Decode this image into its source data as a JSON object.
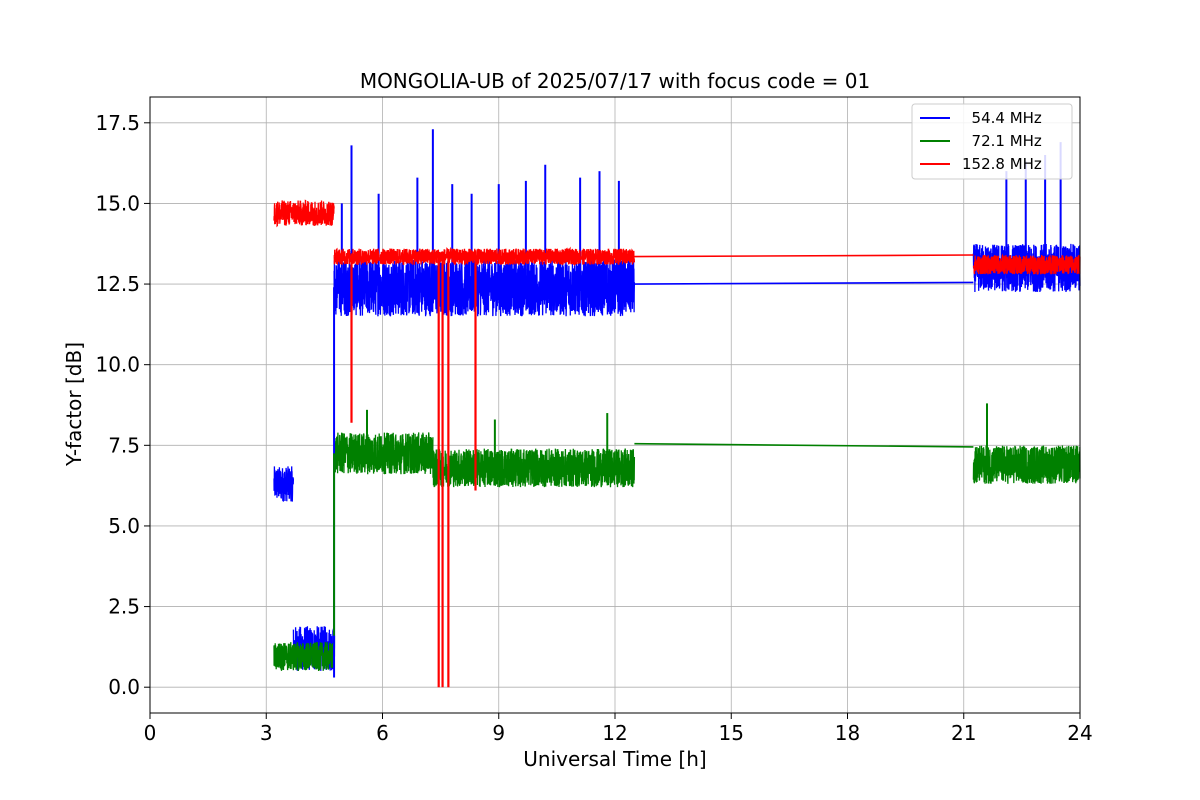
{
  "chart_data": {
    "type": "line",
    "title": "MONGOLIA-UB of 2025/07/17 with focus code = 01",
    "xlabel": "Universal Time [h]",
    "ylabel": "Y-factor [dB]",
    "xlim": [
      0,
      24
    ],
    "ylim": [
      -0.8,
      18.3
    ],
    "xticks": [
      0,
      3,
      6,
      9,
      12,
      15,
      18,
      21,
      24
    ],
    "xtick_labels": [
      "0",
      "3",
      "6",
      "9",
      "12",
      "15",
      "18",
      "21",
      "24"
    ],
    "yticks": [
      0.0,
      2.5,
      5.0,
      7.5,
      10.0,
      12.5,
      15.0,
      17.5
    ],
    "ytick_labels": [
      "0.0",
      "2.5",
      "5.0",
      "7.5",
      "10.0",
      "12.5",
      "15.0",
      "17.5"
    ],
    "grid": true,
    "legend_position": "top-right",
    "series": [
      {
        "name": "  54.4 MHz",
        "color": "#0000ff",
        "segments": [
          {
            "x_start": 3.2,
            "x_end": 3.7,
            "center": 6.3,
            "spread": 0.55
          },
          {
            "x_start": 3.7,
            "x_end": 4.75,
            "center": 1.2,
            "spread": 0.7
          },
          {
            "x_start": 4.75,
            "x_end": 12.5,
            "center": 12.4,
            "spread": 0.9
          },
          {
            "x_start": 21.25,
            "x_end": 24.0,
            "center": 13.0,
            "spread": 0.75
          }
        ],
        "gap_bridge": [
          [
            12.5,
            12.5
          ],
          [
            21.25,
            12.55
          ]
        ],
        "spikes": [
          [
            4.95,
            15.0
          ],
          [
            5.2,
            16.8
          ],
          [
            5.9,
            15.3
          ],
          [
            6.9,
            15.8
          ],
          [
            7.3,
            17.3
          ],
          [
            7.8,
            15.6
          ],
          [
            8.3,
            15.3
          ],
          [
            9.0,
            15.6
          ],
          [
            9.7,
            15.7
          ],
          [
            10.2,
            16.2
          ],
          [
            11.1,
            15.8
          ],
          [
            11.6,
            16.0
          ],
          [
            12.1,
            15.7
          ],
          [
            22.1,
            16.0
          ],
          [
            22.6,
            16.3
          ],
          [
            23.1,
            16.5
          ],
          [
            23.5,
            16.9
          ]
        ]
      },
      {
        "name": "  72.1 MHz",
        "color": "#008000",
        "segments": [
          {
            "x_start": 3.2,
            "x_end": 4.75,
            "center": 0.95,
            "spread": 0.45
          },
          {
            "x_start": 4.75,
            "x_end": 7.3,
            "center": 7.25,
            "spread": 0.65
          },
          {
            "x_start": 7.3,
            "x_end": 12.5,
            "center": 6.8,
            "spread": 0.6
          },
          {
            "x_start": 21.25,
            "x_end": 24.0,
            "center": 6.9,
            "spread": 0.6
          }
        ],
        "gap_bridge": [
          [
            12.5,
            7.55
          ],
          [
            21.25,
            7.45
          ]
        ],
        "spikes": [
          [
            5.6,
            8.6
          ],
          [
            8.9,
            8.3
          ],
          [
            11.8,
            8.5
          ],
          [
            21.6,
            8.8
          ]
        ]
      },
      {
        "name": "152.8 MHz",
        "color": "#ff0000",
        "segments": [
          {
            "x_start": 3.2,
            "x_end": 4.75,
            "center": 14.7,
            "spread": 0.4
          },
          {
            "x_start": 4.75,
            "x_end": 12.5,
            "center": 13.35,
            "spread": 0.25
          },
          {
            "x_start": 21.25,
            "x_end": 24.0,
            "center": 13.1,
            "spread": 0.3
          }
        ],
        "gap_bridge": [
          [
            12.5,
            13.35
          ],
          [
            21.25,
            13.4
          ]
        ],
        "dips": [
          [
            5.2,
            8.2
          ],
          [
            7.45,
            0.0
          ],
          [
            7.55,
            0.0
          ],
          [
            7.7,
            0.0
          ],
          [
            8.4,
            6.1
          ]
        ]
      }
    ]
  }
}
